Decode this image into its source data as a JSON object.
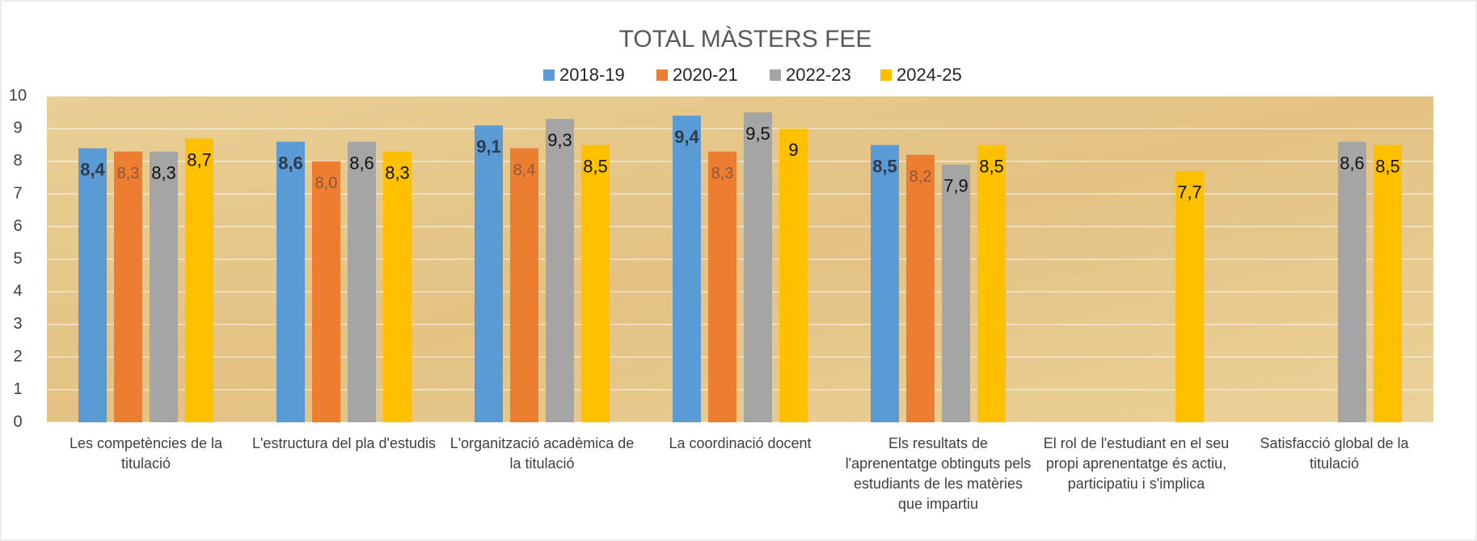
{
  "chart_data": {
    "type": "bar",
    "title": "TOTAL MÀSTERS FEE",
    "categories": [
      "Les competències de la titulació",
      "L'estructura del pla d'estudis",
      "L'organització acadèmica de la titulació",
      "La coordinació docent",
      "Els resultats de l'aprenentatge obtinguts pels estudiants de les matèries que impartiu",
      "El rol de l'estudiant en el seu propi aprenentatge és actiu, participatiu i s'implica",
      "Satisfacció global de la titulació"
    ],
    "series": [
      {
        "name": "2018-19",
        "color": "#5b9bd5",
        "values": [
          8.4,
          8.6,
          9.1,
          9.4,
          8.5,
          null,
          null
        ],
        "value_labels": [
          "8,4",
          "8,6",
          "9,1",
          "9,4",
          "8,5",
          null,
          null
        ]
      },
      {
        "name": "2020-21",
        "color": "#ed7d31",
        "values": [
          8.3,
          8.0,
          8.4,
          8.3,
          8.2,
          null,
          null
        ],
        "value_labels": [
          "8,3",
          "8,0",
          "8,4",
          "8,3",
          "8,2",
          null,
          null
        ]
      },
      {
        "name": "2022-23",
        "color": "#a5a5a5",
        "values": [
          8.3,
          8.6,
          9.3,
          9.5,
          7.9,
          null,
          8.6
        ],
        "value_labels": [
          "8,3",
          "8,6",
          "9,3",
          "9,5",
          "7,9",
          null,
          "8,6"
        ]
      },
      {
        "name": "2024-25",
        "color": "#ffc000",
        "values": [
          8.7,
          8.3,
          8.5,
          9,
          8.5,
          7.7,
          8.5
        ],
        "value_labels": [
          "8,7",
          "8,3",
          "8,5",
          "9",
          "8,5",
          "7,7",
          "8,5"
        ]
      }
    ],
    "ylim": [
      0,
      10
    ],
    "yticks": [
      0,
      1,
      2,
      3,
      4,
      5,
      6,
      7,
      8,
      9,
      10
    ],
    "grid": true,
    "legend": "top"
  }
}
